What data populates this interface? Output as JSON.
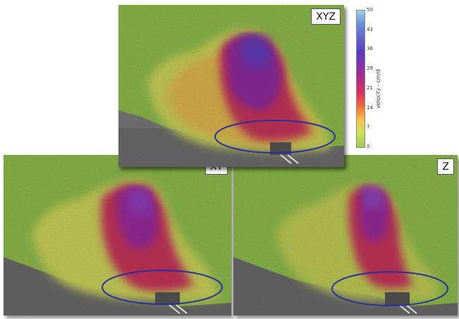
{
  "panels": {
    "top": {
      "label": "XYZ"
    },
    "left": {
      "label": "XY"
    },
    "right": {
      "label": "Z"
    }
  },
  "colorbar": {
    "label": "velocity - cm/d",
    "ticks": [
      "50",
      "43",
      "36",
      "29",
      "21",
      "14",
      "7",
      "0"
    ],
    "colors": [
      "#9ad5e8",
      "#6a8fd9",
      "#5a3dbf",
      "#9a2b9e",
      "#d8305e",
      "#ef6b3a",
      "#f6c24a",
      "#9ccb52"
    ]
  },
  "ellipse_color": "#2a2f9e"
}
